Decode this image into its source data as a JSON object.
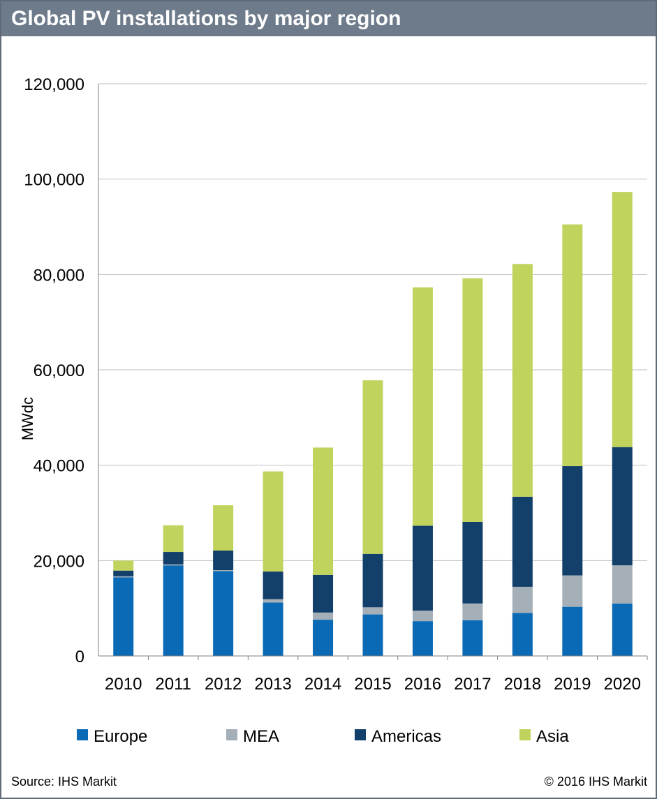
{
  "title": "Global PV installations by major region",
  "footer": {
    "source": "Source: IHS Markit",
    "copyright": "© 2016 IHS Markit"
  },
  "colors": {
    "header": "#6e7b8b",
    "Europe": "#0a6ab5",
    "MEA": "#a5afb8",
    "Americas": "#13406b",
    "Asia": "#bfd35d"
  },
  "chart_data": {
    "type": "bar",
    "stacked": true,
    "title": "Global PV installations by major region",
    "xlabel": "",
    "ylabel": "MWdc",
    "ylim": [
      0,
      120000
    ],
    "yticks": [
      0,
      20000,
      40000,
      60000,
      80000,
      100000,
      120000
    ],
    "ytick_labels": [
      "0",
      "20,000",
      "40,000",
      "60,000",
      "80,000",
      "100,000",
      "120,000"
    ],
    "grid": true,
    "legend_position": "bottom",
    "categories": [
      "2010",
      "2011",
      "2012",
      "2013",
      "2014",
      "2015",
      "2016",
      "2017",
      "2018",
      "2019",
      "2020"
    ],
    "series": [
      {
        "name": "Europe",
        "values": [
          16500,
          19000,
          17800,
          11200,
          7600,
          8700,
          7300,
          7500,
          9000,
          10300,
          11000
        ]
      },
      {
        "name": "MEA",
        "values": [
          200,
          200,
          200,
          700,
          1500,
          1500,
          2200,
          3500,
          5500,
          6600,
          8000
        ]
      },
      {
        "name": "Americas",
        "values": [
          1200,
          2600,
          4100,
          5800,
          7900,
          11200,
          17800,
          17100,
          18900,
          22900,
          24800
        ]
      },
      {
        "name": "Asia",
        "values": [
          2100,
          5600,
          9500,
          21000,
          26700,
          36400,
          50000,
          51100,
          48800,
          50700,
          53500
        ]
      }
    ]
  }
}
